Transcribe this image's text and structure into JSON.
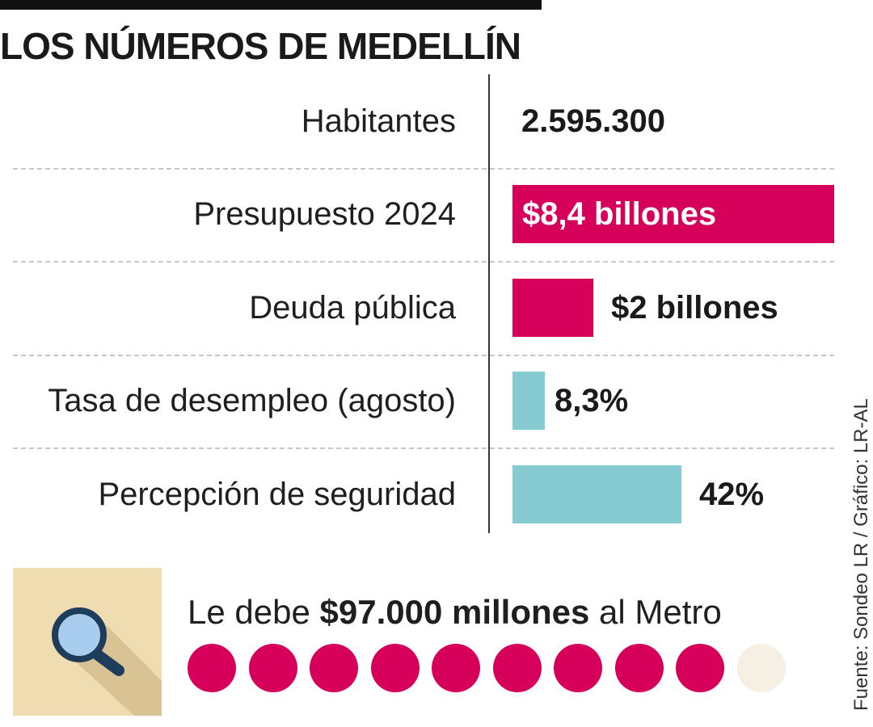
{
  "title": "LOS NÚMEROS DE MEDELLÍN",
  "colors": {
    "magenta": "#d6005a",
    "teal": "#87cbd2",
    "empty_dot": "#f5efe4",
    "panel": "#efdcb1",
    "magnifier_lens": "#a9cdee",
    "magnifier_frame": "#1e3d5a"
  },
  "chart_data": {
    "type": "bar",
    "orientation": "horizontal",
    "categories": [
      "Habitantes",
      "Presupuesto 2024",
      "Deuda pública",
      "Tasa de desempleo (agosto)",
      "Percepción de seguridad"
    ],
    "rows": [
      {
        "label": "Habitantes",
        "value_text": "2.595.300",
        "value": 2595300,
        "bar": false
      },
      {
        "label": "Presupuesto 2024",
        "value_text": "$8,4 billones",
        "value": 8.4,
        "bar": true,
        "fraction": 1.0,
        "color": "#d6005a",
        "label_inside": true
      },
      {
        "label": "Deuda pública",
        "value_text": "$2 billones",
        "value": 2,
        "bar": true,
        "fraction": 0.25,
        "color": "#d6005a",
        "label_inside": false
      },
      {
        "label": "Tasa de desempleo (agosto)",
        "value_text": "8,3%",
        "value": 8.3,
        "bar": true,
        "fraction": 0.1,
        "color": "#87cbd2",
        "label_inside": false
      },
      {
        "label": "Percepción de seguridad",
        "value_text": "42%",
        "value": 42,
        "bar": true,
        "fraction": 0.525,
        "color": "#87cbd2",
        "label_inside": false
      }
    ]
  },
  "metro": {
    "prefix": "Le debe ",
    "amount": "$97.000 millones",
    "suffix": " al Metro",
    "dots_total": 10,
    "dots_filled": 9
  },
  "icon": "magnifier-icon",
  "source": "Fuente: Sondeo LR / Gráfico: LR-AL"
}
